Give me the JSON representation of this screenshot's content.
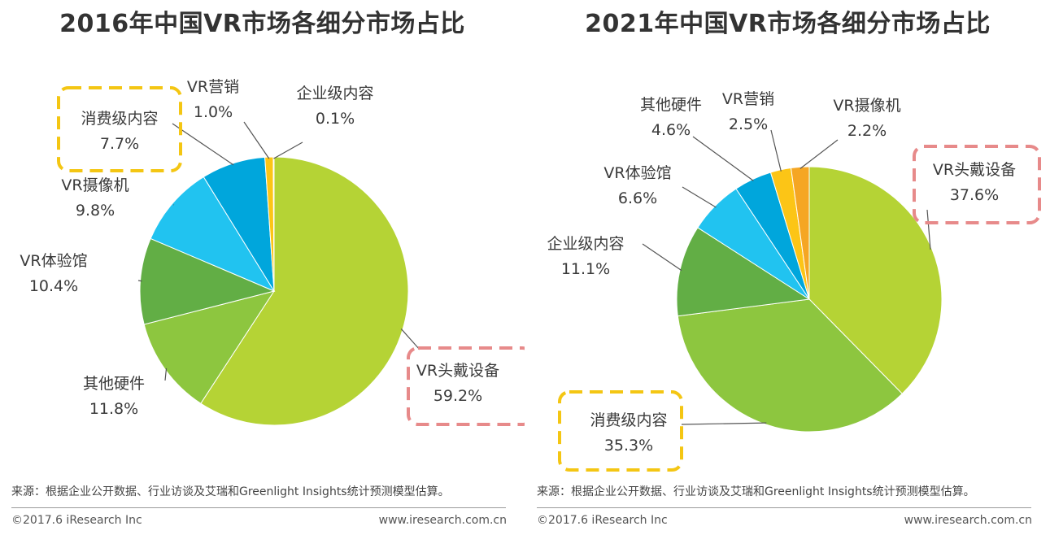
{
  "chart_data": [
    {
      "type": "pie",
      "title": "2016年中国VR市场各细分市场占比",
      "slices": [
        {
          "label": "VR头戴设备",
          "value": 59.2,
          "display": "59.2%",
          "color": "#b5d335",
          "highlight": "#e78a8a"
        },
        {
          "label": "其他硬件",
          "value": 11.8,
          "display": "11.8%",
          "color": "#8dc63f"
        },
        {
          "label": "VR体验馆",
          "value": 10.4,
          "display": "10.4%",
          "color": "#62ae45"
        },
        {
          "label": "VR摄像机",
          "value": 9.8,
          "display": "9.8%",
          "color": "#21c3f0"
        },
        {
          "label": "消费级内容",
          "value": 7.7,
          "display": "7.7%",
          "color": "#00a6dc",
          "highlight": "#f4c613"
        },
        {
          "label": "VR营销",
          "value": 1.0,
          "display": "1.0%",
          "color": "#fcc516"
        },
        {
          "label": "企业级内容",
          "value": 0.1,
          "display": "0.1%",
          "color": "#f5a623"
        }
      ]
    },
    {
      "type": "pie",
      "title": "2021年中国VR市场各细分市场占比",
      "slices": [
        {
          "label": "VR头戴设备",
          "value": 37.6,
          "display": "37.6%",
          "color": "#b5d335",
          "highlight": "#e78a8a"
        },
        {
          "label": "消费级内容",
          "value": 35.3,
          "display": "35.3%",
          "color": "#8dc63f",
          "highlight": "#f4c613"
        },
        {
          "label": "企业级内容",
          "value": 11.1,
          "display": "11.1%",
          "color": "#62ae45"
        },
        {
          "label": "VR体验馆",
          "value": 6.6,
          "display": "6.6%",
          "color": "#21c3f0"
        },
        {
          "label": "其他硬件",
          "value": 4.6,
          "display": "4.6%",
          "color": "#00a6dc"
        },
        {
          "label": "VR营销",
          "value": 2.5,
          "display": "2.5%",
          "color": "#fcc516"
        },
        {
          "label": "VR摄像机",
          "value": 2.2,
          "display": "2.2%",
          "color": "#f5a623"
        }
      ]
    }
  ],
  "footer": {
    "source": "来源：根据企业公开数据、行业访谈及艾瑞和Greenlight Insights统计预测模型估算。",
    "copyright": "©2017.6 iResearch Inc",
    "website": "www.iresearch.com.cn"
  }
}
